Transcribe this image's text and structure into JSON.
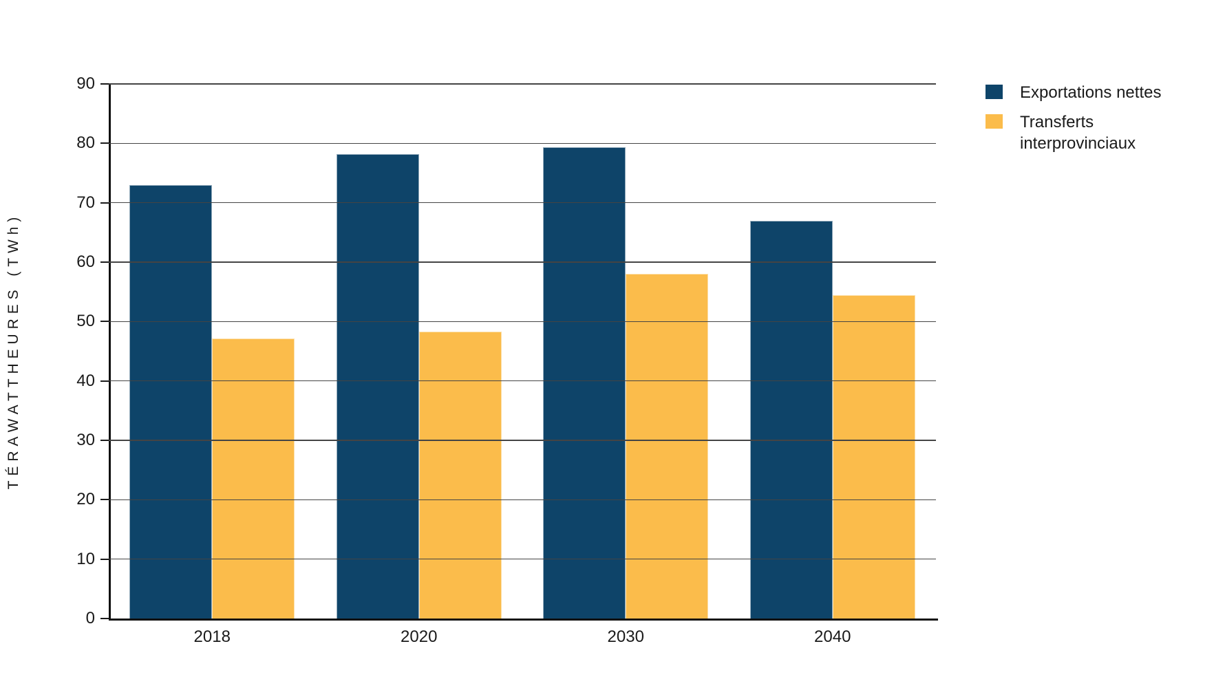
{
  "page": {
    "background": "#ffffff"
  },
  "chart_data": {
    "type": "bar",
    "title": "",
    "categories": [
      "2018",
      "2020",
      "2030",
      "2040"
    ],
    "series": [
      {
        "name": "Exportations nettes",
        "color": "#0E4469",
        "values": [
          73,
          78.2,
          79.4,
          67
        ]
      },
      {
        "name": "Transferts interprovinciaux",
        "color": "#FBBC4B",
        "values": [
          47.2,
          48.3,
          58,
          54.4
        ]
      }
    ],
    "xlabel": "",
    "ylabel": "TÉRAWATTHEURES (TWh)",
    "ylim": [
      0,
      90
    ],
    "yticks": [
      0,
      10,
      20,
      30,
      40,
      50,
      60,
      70,
      80,
      90
    ],
    "grid": true,
    "gridlines_on_top_of_bars": true,
    "gridline_color": "#444444",
    "axis_color": "#111111",
    "text_color": "#1a1a1a",
    "legend_position": "top-right"
  }
}
